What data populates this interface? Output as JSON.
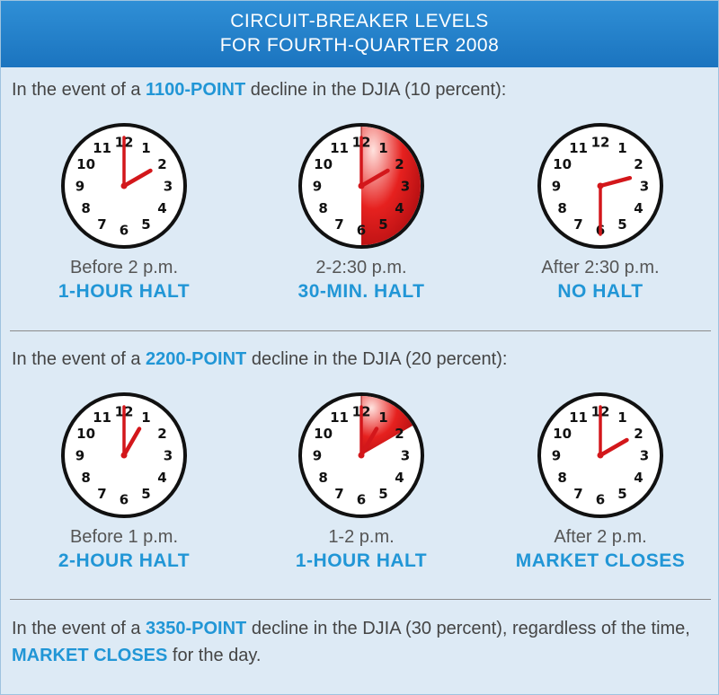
{
  "header": {
    "line1": "CIRCUIT-BREAKER LEVELS",
    "line2": "FOR FOURTH-QUARTER 2008"
  },
  "sections": [
    {
      "intro_before": "In the event of a ",
      "points": "1100-POINT",
      "intro_after": " decline in the DJIA (10 percent):",
      "clocks": [
        {
          "caption": "Before 2 p.m.",
          "status": "1-HOUR HALT",
          "hour": 2,
          "minute": 0,
          "shade": null
        },
        {
          "caption": "2-2:30 p.m.",
          "status": "30-MIN. HALT",
          "hour": 2,
          "minute": 0,
          "shade": [
            0,
            180
          ]
        },
        {
          "caption": "After 2:30 p.m.",
          "status": "NO HALT",
          "hour": 2,
          "minute": 30,
          "shade": null
        }
      ]
    },
    {
      "intro_before": "In the event of a ",
      "points": "2200-POINT",
      "intro_after": " decline in the DJIA (20 percent):",
      "clocks": [
        {
          "caption": "Before 1 p.m.",
          "status": "2-HOUR HALT",
          "hour": 1,
          "minute": 0,
          "shade": null
        },
        {
          "caption": "1-2 p.m.",
          "status": "1-HOUR HALT",
          "hour": 1,
          "minute": 0,
          "shade": [
            0,
            60
          ]
        },
        {
          "caption": "After 2 p.m.",
          "status": "MARKET CLOSES",
          "hour": 2,
          "minute": 0,
          "shade": null
        }
      ]
    }
  ],
  "final": {
    "before": "In the event of a ",
    "points": "3350-POINT",
    "middle": " decline in the DJIA (30 percent), regardless of the time, ",
    "closes": "MARKET CLOSES",
    "after": " for the day."
  },
  "colors": {
    "accent_blue": "#2196d6",
    "header_blue": "#1f7dc7",
    "hand_red": "#d3171b",
    "shade_red": "#e6211f",
    "panel_bg": "#ddeaf5"
  }
}
